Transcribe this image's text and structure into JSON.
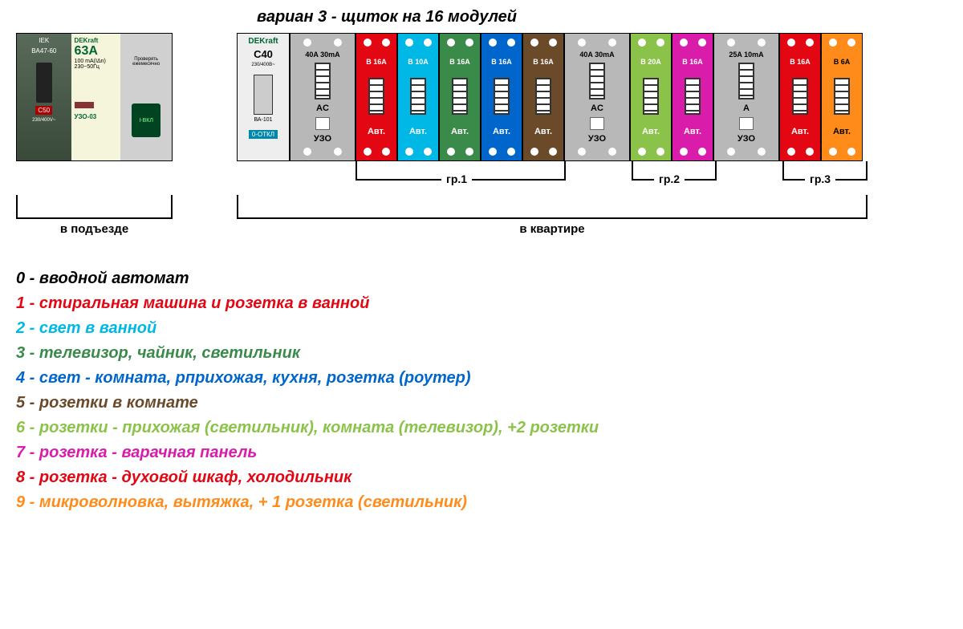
{
  "title": "вариан 3 - щиток на 16 модулей",
  "entrance": {
    "iek": "IEK",
    "model": "BA47-60",
    "c50": "C50",
    "volts": "230/400V~",
    "brand": "DEKraft",
    "amp": "63A",
    "sub1": "100 mA(IΔn)",
    "sub2": "230~50Гц",
    "uzo": "УЗО-03",
    "check": "Проверять ежемесячно",
    "on": "I-ВКЛ"
  },
  "main": {
    "brand": "DEKraft",
    "c40": "C40",
    "sub": "230/400В~",
    "model": "ВА-101",
    "off": "0-ОТКЛ"
  },
  "modules": [
    {
      "rating": "40A 30mA",
      "type": "AC",
      "label": "УЗО",
      "bg": "#b8b8b8",
      "fg": "#000000",
      "wide": true,
      "square": true
    },
    {
      "rating": "B 16A",
      "type": "",
      "label": "Авт.",
      "bg": "#e30613",
      "fg": "#ffffff"
    },
    {
      "rating": "B 10A",
      "type": "",
      "label": "Авт.",
      "bg": "#00b8e6",
      "fg": "#ffffff"
    },
    {
      "rating": "B 16A",
      "type": "",
      "label": "Авт.",
      "bg": "#3a8a4a",
      "fg": "#ffffff"
    },
    {
      "rating": "B 16A",
      "type": "",
      "label": "Авт.",
      "bg": "#0066cc",
      "fg": "#ffffff"
    },
    {
      "rating": "B 16A",
      "type": "",
      "label": "Авт.",
      "bg": "#6b4a2a",
      "fg": "#ffffff"
    },
    {
      "rating": "40A 30mA",
      "type": "AC",
      "label": "УЗО",
      "bg": "#b8b8b8",
      "fg": "#000000",
      "wide": true,
      "square": true
    },
    {
      "rating": "B 20A",
      "type": "",
      "label": "Авт.",
      "bg": "#8bc34a",
      "fg": "#ffffff"
    },
    {
      "rating": "B 16A",
      "type": "",
      "label": "Авт.",
      "bg": "#d91caa",
      "fg": "#ffffff"
    },
    {
      "rating": "25A 10mA",
      "type": "A",
      "label": "УЗО",
      "bg": "#b8b8b8",
      "fg": "#000000",
      "wide": true,
      "square": true
    },
    {
      "rating": "B 16A",
      "type": "",
      "label": "Авт.",
      "bg": "#e30613",
      "fg": "#ffffff"
    },
    {
      "rating": "B 6A",
      "type": "",
      "label": "Авт.",
      "bg": "#ff8c1a",
      "fg": "#000000"
    }
  ],
  "groups": {
    "g1": "гр.1",
    "g2": "гр.2",
    "g3": "гр.3"
  },
  "location": {
    "entrance": "в подъезде",
    "apartment": "в квартире"
  },
  "legend": [
    {
      "n": "0",
      "text": "вводной автомат",
      "color": "#000000"
    },
    {
      "n": "1",
      "text": "стиральная машина и розетка в ванной",
      "color": "#e30613"
    },
    {
      "n": "2",
      "text": "свет в ванной",
      "color": "#00b8e6"
    },
    {
      "n": "3",
      "text": "телевизор, чайник, светильник",
      "color": "#3a8a4a"
    },
    {
      "n": "4",
      "text": "свет - комната, рприхожая, кухня, розетка (роутер)",
      "color": "#0066cc"
    },
    {
      "n": "5",
      "text": "розетки в комнате",
      "color": "#6b4a2a"
    },
    {
      "n": "6",
      "text": "розетки - прихожая (светильник), комната (телевизор), +2 розетки",
      "color": "#8bc34a"
    },
    {
      "n": "7",
      "text": "розетка - варачная панель",
      "color": "#d91caa"
    },
    {
      "n": "8",
      "text": "розетка - духовой шкаф, холодильник",
      "color": "#e30613"
    },
    {
      "n": "9",
      "text": "микроволновка, вытяжка, + 1 розетка (светильник)",
      "color": "#ff8c1a"
    }
  ]
}
